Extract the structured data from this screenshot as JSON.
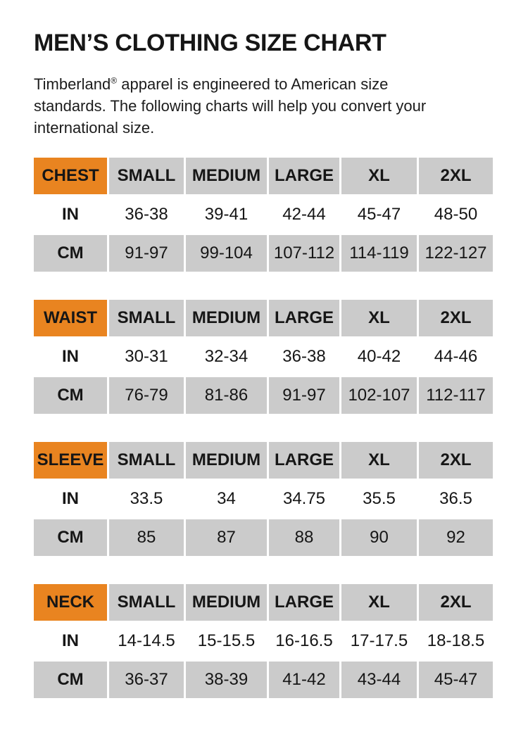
{
  "page": {
    "title": "MEN’S CLOTHING SIZE CHART"
  },
  "intro": {
    "brand": "Timberland",
    "registered_mark": "®",
    "line1_rest": " apparel is engineered to American size",
    "line2": "standards. The following charts will help you convert your",
    "line3": "international size."
  },
  "colors": {
    "accent_orange": "#E98420",
    "cell_gray": "#CBCBCB",
    "text": "#161616",
    "background": "#FFFFFF"
  },
  "sizes": [
    "SMALL",
    "MEDIUM",
    "LARGE",
    "XL",
    "2XL"
  ],
  "units": [
    "IN",
    "CM"
  ],
  "tables": [
    {
      "label": "CHEST",
      "in": [
        "36-38",
        "39-41",
        "42-44",
        "45-47",
        "48-50"
      ],
      "cm": [
        "91-97",
        "99-104",
        "107-112",
        "114-119",
        "122-127"
      ]
    },
    {
      "label": "WAIST",
      "in": [
        "30-31",
        "32-34",
        "36-38",
        "40-42",
        "44-46"
      ],
      "cm": [
        "76-79",
        "81-86",
        "91-97",
        "102-107",
        "112-117"
      ]
    },
    {
      "label": "SLEEVE",
      "in": [
        "33.5",
        "34",
        "34.75",
        "35.5",
        "36.5"
      ],
      "cm": [
        "85",
        "87",
        "88",
        "90",
        "92"
      ]
    },
    {
      "label": "NECK",
      "in": [
        "14-14.5",
        "15-15.5",
        "16-16.5",
        "17-17.5",
        "18-18.5"
      ],
      "cm": [
        "36-37",
        "38-39",
        "41-42",
        "43-44",
        "45-47"
      ]
    }
  ]
}
